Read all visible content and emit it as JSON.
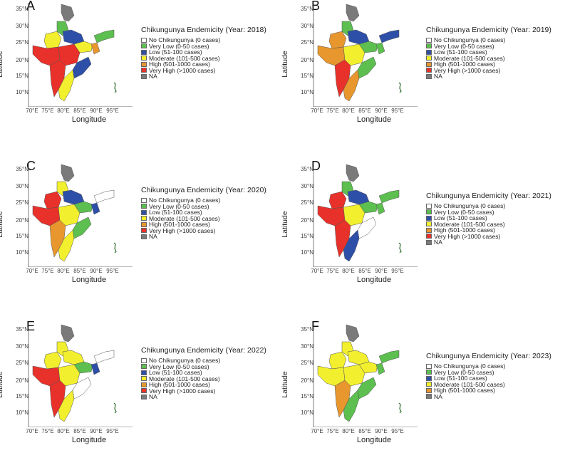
{
  "axes": {
    "xlabel": "Longitude",
    "ylabel": "Latitude",
    "x_ticks": [
      "70°E",
      "75°E",
      "80°E",
      "85°E",
      "90°E",
      "95°E"
    ],
    "y_ticks": [
      "35°N",
      "30°N",
      "25°N",
      "20°N",
      "15°N",
      "10°N"
    ]
  },
  "categories": [
    {
      "label": "No Chikungunya (0 cases)",
      "color": "#ffffff"
    },
    {
      "label": "Very Low (0-50 cases)",
      "color": "#5cbf4f"
    },
    {
      "label": "Low (51-100 cases)",
      "color": "#2e4fa8"
    },
    {
      "label": "Moderate (101-500 cases)",
      "color": "#f2ef2e"
    },
    {
      "label": "High (501-1000 cases)",
      "color": "#e8962e"
    },
    {
      "label": "Very High (>1000 cases)",
      "color": "#e8312a"
    },
    {
      "label": "NA",
      "color": "#7a7a7a"
    }
  ],
  "panels": [
    {
      "letter": "A",
      "title": "Chikungunya Endemicity (Year: 2018)",
      "regions": {
        "west": "very_high",
        "central": "very_high",
        "south_w": "very_high",
        "south_e": "moderate",
        "east_coast": "low",
        "north": "very_low",
        "north_central": "low",
        "northeast": "very_low",
        "ne_small": "high",
        "northwest": "moderate",
        "far_north": "na",
        "gangetic": "moderate"
      }
    },
    {
      "letter": "B",
      "title": "Chikungunya Endemicity (Year: 2019)",
      "regions": {
        "west": "high",
        "central": "moderate",
        "south_w": "very_high",
        "south_e": "high",
        "east_coast": "very_low",
        "north": "very_low",
        "north_central": "low",
        "northeast": "low",
        "ne_small": "very_low",
        "northwest": "high",
        "far_north": "na",
        "gangetic": "very_low"
      }
    },
    {
      "letter": "C",
      "title": "Chikungunya Endemicity (Year: 2020)",
      "regions": {
        "west": "very_high",
        "central": "moderate",
        "south_w": "high",
        "south_e": "moderate",
        "east_coast": "very_low",
        "north": "moderate",
        "north_central": "low",
        "northeast": "none",
        "ne_small": "low",
        "northwest": "very_high",
        "far_north": "na",
        "gangetic": "very_low"
      }
    },
    {
      "letter": "D",
      "title": "Chikungunya Endemicity (Year: 2021)",
      "regions": {
        "west": "very_high",
        "central": "moderate",
        "south_w": "very_high",
        "south_e": "low",
        "east_coast": "none",
        "north": "very_low",
        "north_central": "low",
        "northeast": "very_low",
        "ne_small": "very_low",
        "northwest": "very_high",
        "far_north": "na",
        "gangetic": "very_low"
      }
    },
    {
      "letter": "E",
      "title": "Chikungunya Endemicity (Year: 2022)",
      "regions": {
        "west": "very_high",
        "central": "moderate",
        "south_w": "very_high",
        "south_e": "moderate",
        "east_coast": "none",
        "north": "moderate",
        "north_central": "moderate",
        "northeast": "none",
        "ne_small": "low",
        "northwest": "moderate",
        "far_north": "na",
        "gangetic": "very_low"
      }
    },
    {
      "letter": "F",
      "title": "Chikungunya Endemicity (Year: 2023)",
      "regions": {
        "west": "moderate",
        "central": "moderate",
        "south_w": "high",
        "south_e": "very_low",
        "east_coast": "very_low",
        "north": "moderate",
        "north_central": "moderate",
        "northeast": "very_low",
        "ne_small": "very_low",
        "northwest": "moderate",
        "far_north": "na",
        "gangetic": "moderate"
      }
    }
  ]
}
